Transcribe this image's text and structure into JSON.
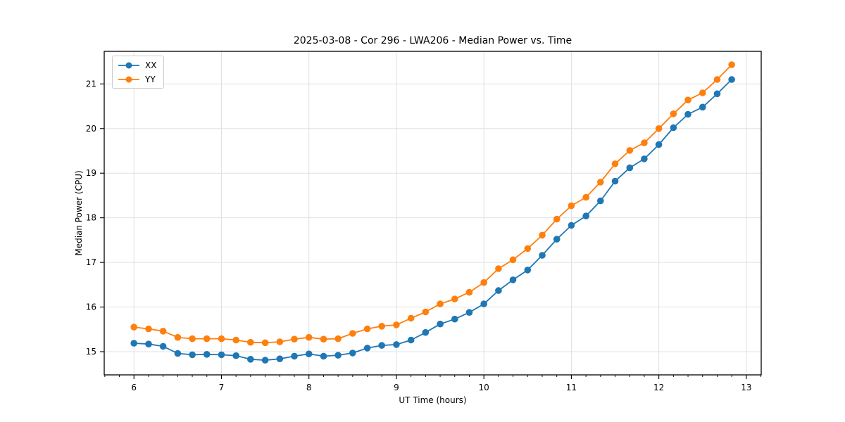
{
  "chart_data": {
    "type": "line",
    "title": "2025-03-08 - Cor 296 - LWA206 - Median Power vs. Time",
    "xlabel": "UT Time (hours)",
    "ylabel": "Median Power (CPU)",
    "xlim": [
      5.66,
      13.17
    ],
    "ylim": [
      14.48,
      21.73
    ],
    "grid": true,
    "legend_position": "upper left",
    "x_major_ticks": [
      6,
      7,
      8,
      9,
      10,
      11,
      12,
      13
    ],
    "x_tick_labels": [
      "6",
      "7",
      "8",
      "9",
      "10",
      "11",
      "12",
      "13"
    ],
    "x_minor_tick_step": 0.1666667,
    "y_major_ticks": [
      15,
      16,
      17,
      18,
      19,
      20,
      21
    ],
    "y_tick_labels": [
      "15",
      "16",
      "17",
      "18",
      "19",
      "20",
      "21"
    ],
    "x": [
      6.0,
      6.167,
      6.333,
      6.5,
      6.667,
      6.833,
      7.0,
      7.167,
      7.333,
      7.5,
      7.667,
      7.833,
      8.0,
      8.167,
      8.333,
      8.5,
      8.667,
      8.833,
      9.0,
      9.167,
      9.333,
      9.5,
      9.667,
      9.833,
      10.0,
      10.167,
      10.333,
      10.5,
      10.667,
      10.833,
      11.0,
      11.167,
      11.333,
      11.5,
      11.667,
      11.833,
      12.0,
      12.167,
      12.333,
      12.5,
      12.667,
      12.833
    ],
    "series": [
      {
        "name": "XX",
        "color": "#1f77b4",
        "values": [
          15.19,
          15.17,
          15.12,
          14.96,
          14.93,
          14.94,
          14.93,
          14.91,
          14.83,
          14.81,
          14.84,
          14.9,
          14.95,
          14.9,
          14.92,
          14.97,
          15.08,
          15.14,
          15.16,
          15.26,
          15.43,
          15.62,
          15.73,
          15.88,
          16.07,
          16.37,
          16.61,
          16.83,
          17.16,
          17.52,
          17.83,
          18.04,
          18.38,
          18.82,
          19.12,
          19.32,
          19.64,
          20.02,
          20.32,
          20.48,
          20.78,
          21.1
        ]
      },
      {
        "name": "YY",
        "color": "#ff7f0e",
        "values": [
          15.55,
          15.51,
          15.46,
          15.32,
          15.29,
          15.29,
          15.29,
          15.26,
          15.21,
          15.2,
          15.22,
          15.28,
          15.32,
          15.28,
          15.29,
          15.41,
          15.51,
          15.57,
          15.6,
          15.75,
          15.89,
          16.07,
          16.18,
          16.33,
          16.55,
          16.86,
          17.06,
          17.31,
          17.61,
          17.97,
          18.27,
          18.46,
          18.8,
          19.21,
          19.51,
          19.68,
          20.0,
          20.33,
          20.64,
          20.8,
          21.1,
          21.43
        ]
      }
    ],
    "style": {
      "grid_color": "#e0e0e0",
      "spine_color": "#000000",
      "tick_color": "#000000",
      "background": "#ffffff",
      "marker_radius": 4.8,
      "line_width": 1.8
    }
  }
}
